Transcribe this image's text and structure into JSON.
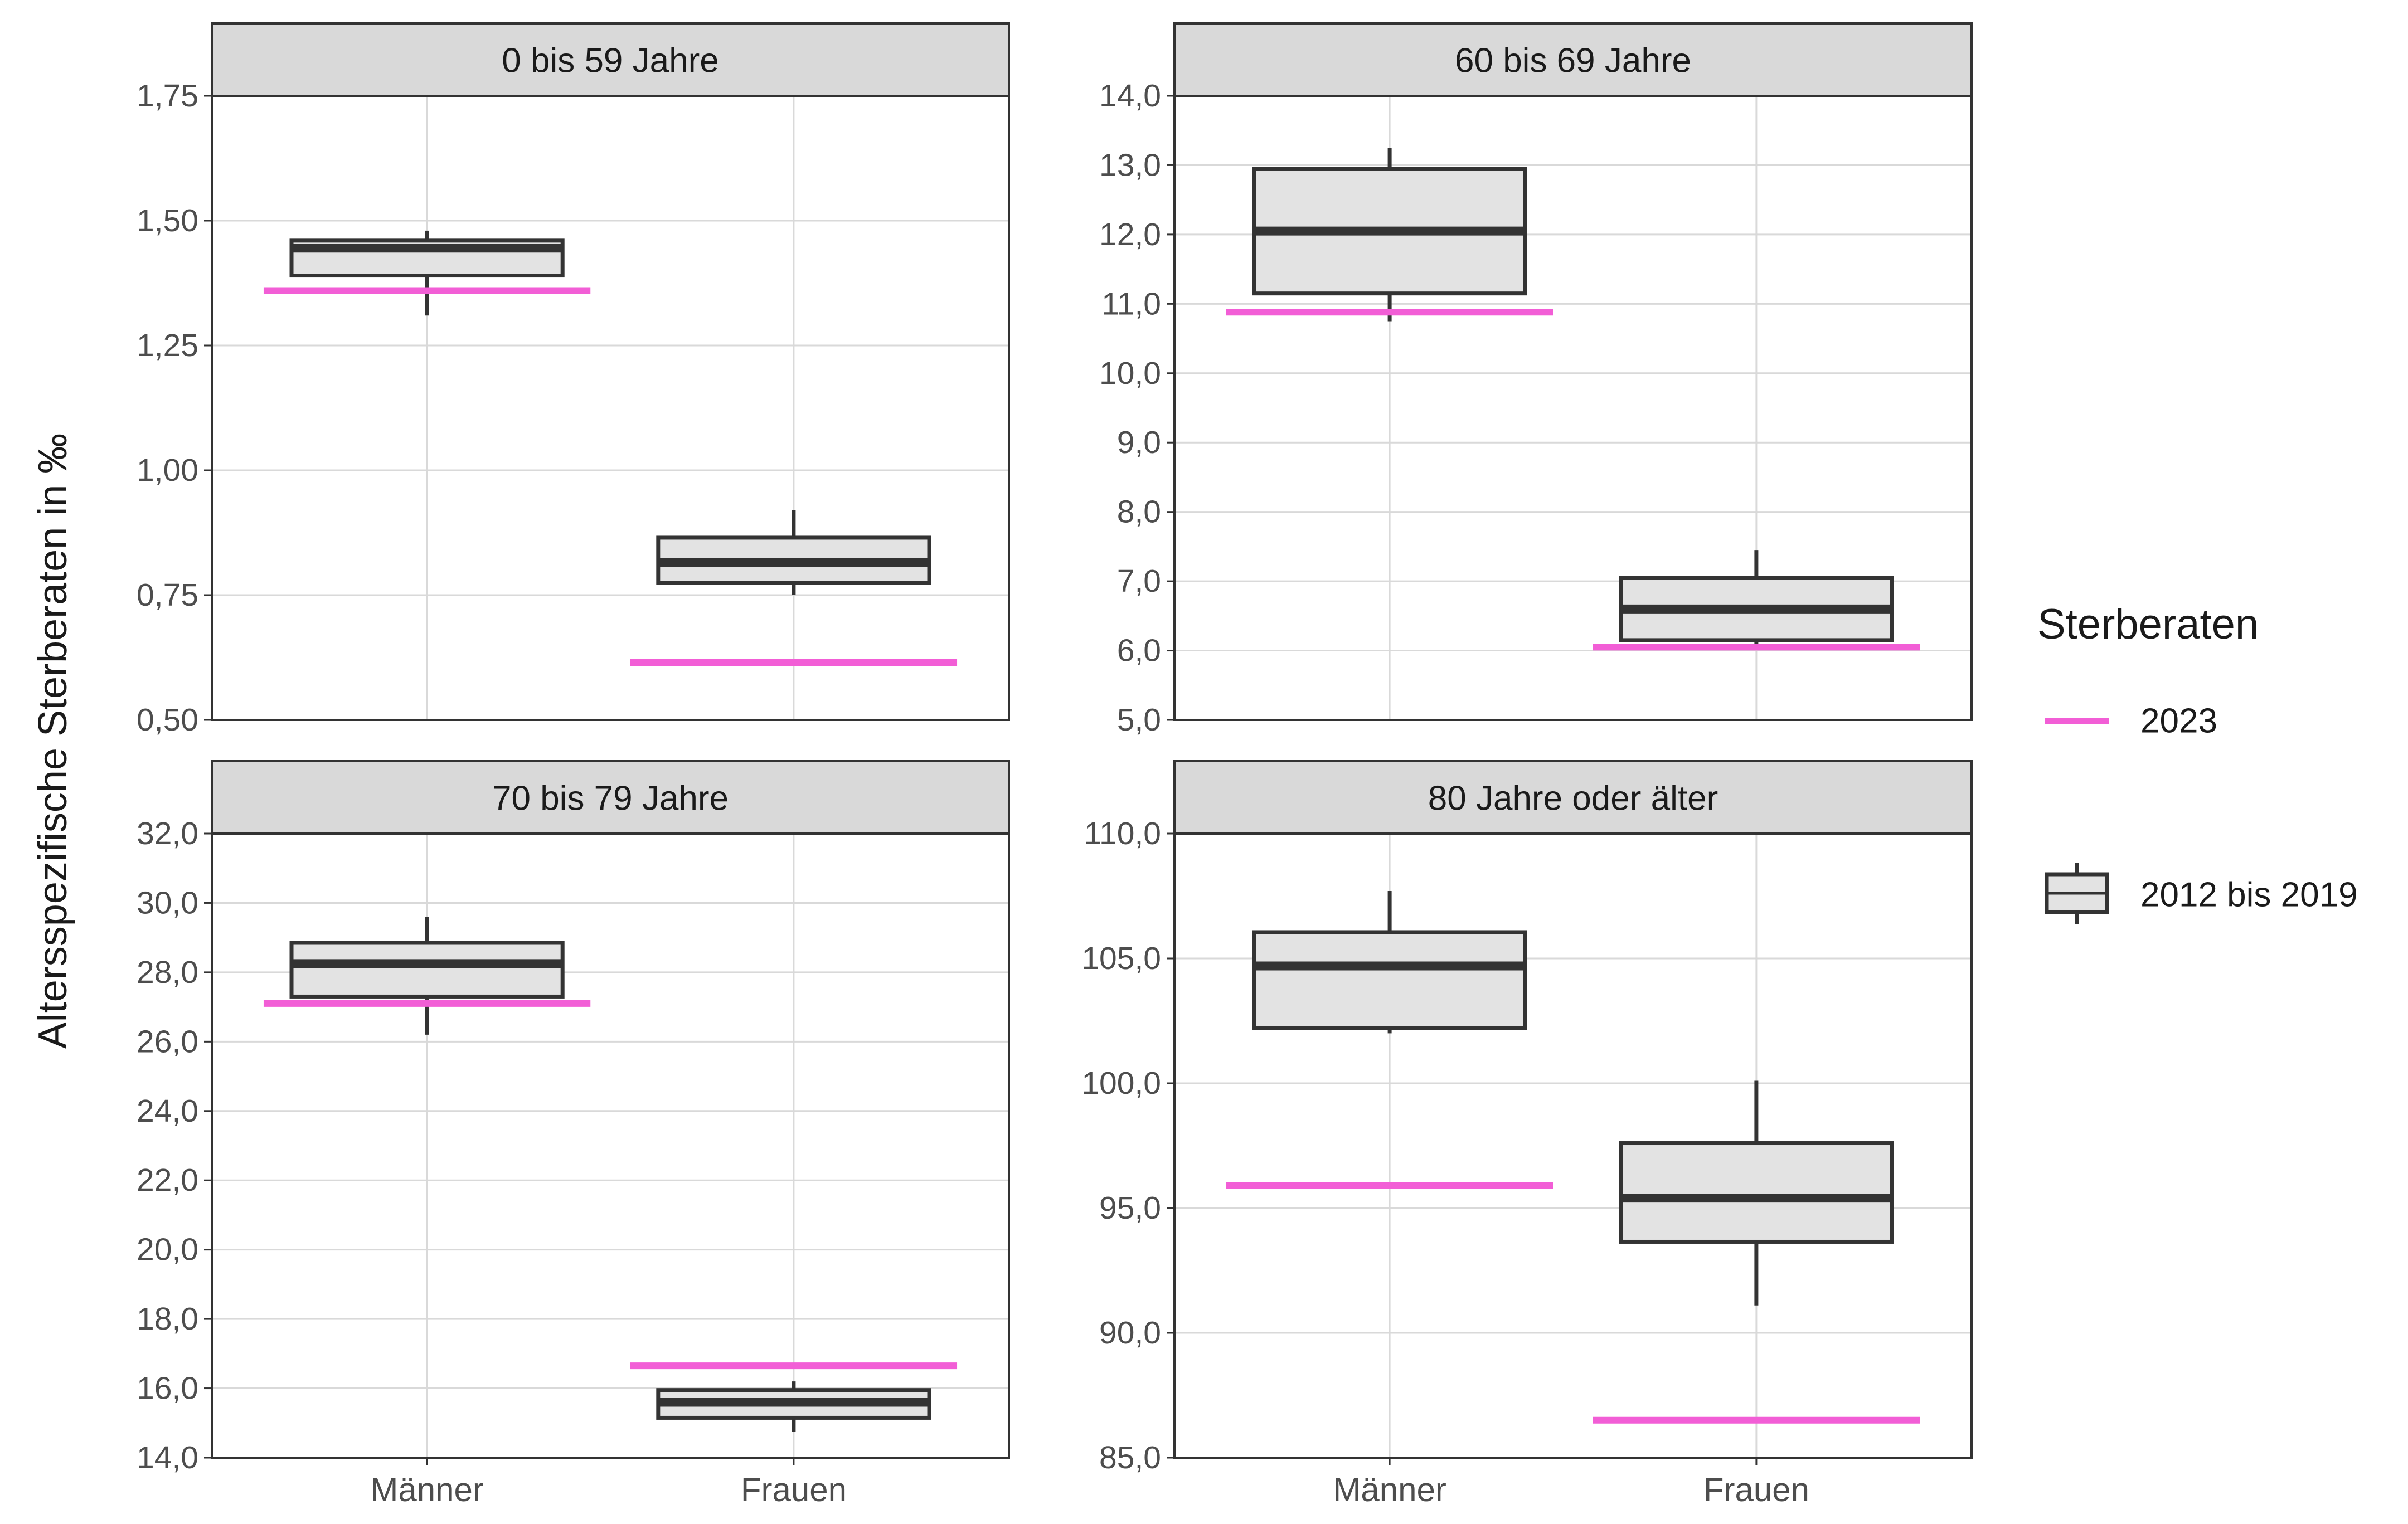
{
  "y_axis_title": "Altersspezifische Sterberaten in ‰",
  "legend": {
    "title": "Sterberaten",
    "items": [
      {
        "label": "2023",
        "kind": "line",
        "color": "#f25ed6"
      },
      {
        "label": "2012 bis 2019",
        "kind": "box"
      }
    ]
  },
  "colors": {
    "line_2023": "#f25ed6",
    "box_fill": "#e3e3e3",
    "box_stroke": "#333333",
    "strip_fill": "#d9d9d9",
    "grid": "#d9d9d9"
  },
  "chart_data": [
    {
      "type": "box",
      "title": "0 bis 59 Jahre",
      "categories": [
        "Männer",
        "Frauen"
      ],
      "ylim": [
        0.5,
        1.75
      ],
      "yticks": [
        "0,50",
        "0,75",
        "1,00",
        "1,25",
        "1,50",
        "1,75"
      ],
      "yticks_values": [
        0.5,
        0.75,
        1.0,
        1.25,
        1.5,
        1.75
      ],
      "show_x_labels": false,
      "series": [
        {
          "name": "2012 bis 2019",
          "boxes": [
            {
              "category": "Männer",
              "min": 1.31,
              "q1": 1.39,
              "median": 1.445,
              "q3": 1.46,
              "max": 1.48
            },
            {
              "category": "Frauen",
              "min": 0.75,
              "q1": 0.775,
              "median": 0.815,
              "q3": 0.865,
              "max": 0.92
            }
          ]
        },
        {
          "name": "2023",
          "values": [
            1.36,
            0.615
          ]
        }
      ]
    },
    {
      "type": "box",
      "title": "60 bis 69 Jahre",
      "categories": [
        "Männer",
        "Frauen"
      ],
      "ylim": [
        5.0,
        14.0
      ],
      "yticks": [
        "5,0",
        "6,0",
        "7,0",
        "8,0",
        "9,0",
        "10,0",
        "11,0",
        "12,0",
        "13,0",
        "14,0"
      ],
      "yticks_values": [
        5,
        6,
        7,
        8,
        9,
        10,
        11,
        12,
        13,
        14
      ],
      "show_x_labels": false,
      "series": [
        {
          "name": "2012 bis 2019",
          "boxes": [
            {
              "category": "Männer",
              "min": 10.75,
              "q1": 11.15,
              "median": 12.05,
              "q3": 12.95,
              "max": 13.25
            },
            {
              "category": "Frauen",
              "min": 6.1,
              "q1": 6.15,
              "median": 6.6,
              "q3": 7.05,
              "max": 7.45
            }
          ]
        },
        {
          "name": "2023",
          "values": [
            10.88,
            6.05
          ]
        }
      ]
    },
    {
      "type": "box",
      "title": "70 bis 79 Jahre",
      "categories": [
        "Männer",
        "Frauen"
      ],
      "ylim": [
        14.0,
        32.0
      ],
      "yticks": [
        "14,0",
        "16,0",
        "18,0",
        "20,0",
        "22,0",
        "24,0",
        "26,0",
        "28,0",
        "30,0",
        "32,0"
      ],
      "yticks_values": [
        14,
        16,
        18,
        20,
        22,
        24,
        26,
        28,
        30,
        32
      ],
      "show_x_labels": true,
      "series": [
        {
          "name": "2012 bis 2019",
          "boxes": [
            {
              "category": "Männer",
              "min": 26.2,
              "q1": 27.3,
              "median": 28.25,
              "q3": 28.85,
              "max": 29.6
            },
            {
              "category": "Frauen",
              "min": 14.75,
              "q1": 15.15,
              "median": 15.6,
              "q3": 15.95,
              "max": 16.2
            }
          ]
        },
        {
          "name": "2023",
          "values": [
            27.1,
            16.65
          ]
        }
      ]
    },
    {
      "type": "box",
      "title": "80 Jahre oder älter",
      "categories": [
        "Männer",
        "Frauen"
      ],
      "ylim": [
        85.0,
        110.0
      ],
      "yticks": [
        "85,0",
        "90,0",
        "95,0",
        "100,0",
        "105,0",
        "110,0"
      ],
      "yticks_values": [
        85,
        90,
        95,
        100,
        105,
        110
      ],
      "show_x_labels": true,
      "series": [
        {
          "name": "2012 bis 2019",
          "boxes": [
            {
              "category": "Männer",
              "min": 102.0,
              "q1": 102.2,
              "median": 104.7,
              "q3": 106.05,
              "max": 107.7
            },
            {
              "category": "Frauen",
              "min": 91.1,
              "q1": 93.65,
              "median": 95.4,
              "q3": 97.6,
              "max": 100.1
            }
          ]
        },
        {
          "name": "2023",
          "values": [
            95.9,
            86.5
          ]
        }
      ]
    }
  ]
}
